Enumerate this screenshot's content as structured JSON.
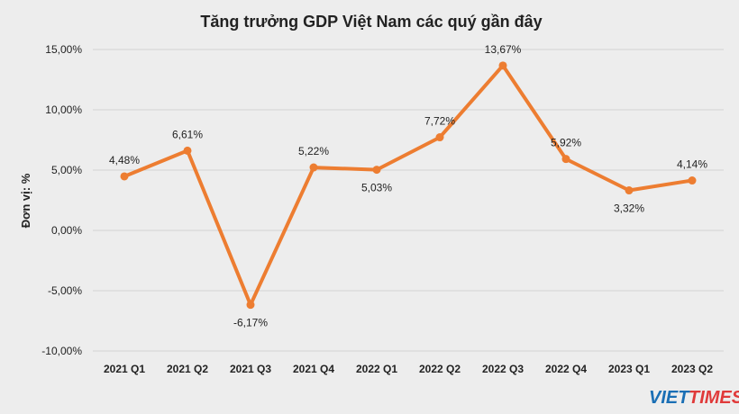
{
  "chart_data": {
    "type": "line",
    "title": "Tăng trưởng GDP Việt Nam các quý gần đây",
    "ylabel": "Đơn vị: %",
    "xlabel": "",
    "categories": [
      "2021 Q1",
      "2021 Q2",
      "2021 Q3",
      "2021 Q4",
      "2022 Q1",
      "2022 Q2",
      "2022 Q3",
      "2022 Q4",
      "2023 Q1",
      "2023 Q2"
    ],
    "series": [
      {
        "name": "",
        "values": [
          4.48,
          6.61,
          -6.17,
          5.22,
          5.03,
          7.72,
          13.67,
          5.92,
          3.32,
          4.14
        ]
      }
    ],
    "data_labels": [
      "4,48%",
      "6,61%",
      "-6,17%",
      "5,22%",
      "5,03%",
      "7,72%",
      "13,67%",
      "5,92%",
      "3,32%",
      "4,14%"
    ],
    "ylim": [
      -10,
      15
    ],
    "yticks": [
      15,
      10,
      5,
      0,
      -5,
      -10
    ],
    "ytick_labels": [
      "15,00%",
      "10,00%",
      "5,00%",
      "0,00%",
      "-5,00%",
      "-10,00%"
    ],
    "grid": true,
    "legend": "none",
    "line_color": "#ed7d31"
  },
  "logo": {
    "part1": "VIET",
    "part2": "TIMES"
  }
}
